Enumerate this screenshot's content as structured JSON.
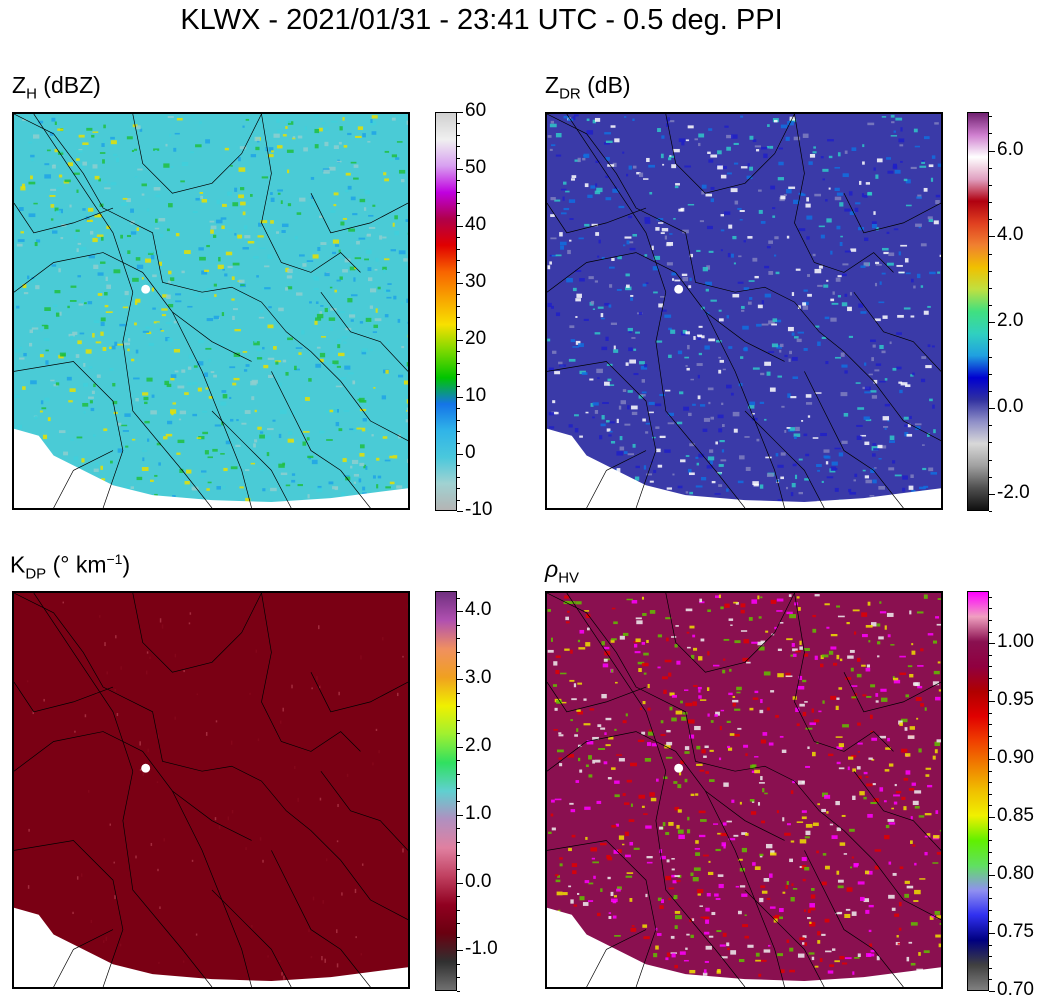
{
  "figure": {
    "title": "KLWX - 2021/01/31 - 23:41 UTC - 0.5 deg. PPI"
  },
  "panels": [
    {
      "id": "zh",
      "title": "Z",
      "title_sub": "H",
      "title_rest": " (dBZ)",
      "cmap": [
        "#b4b4b4",
        "#a0d2d2",
        "#4ac8dc",
        "#30b4e8",
        "#1474e8",
        "#00c400",
        "#7ad800",
        "#f8e000",
        "#f8a400",
        "#f86400",
        "#e00000",
        "#b0004a",
        "#c000e0",
        "#d8a0f0",
        "#f0f0f0",
        "#d0d0d0"
      ],
      "field_colors": [
        "#4acbd6",
        "#3fd0dc",
        "#8ecfcf",
        "#1fa3e6",
        "#20c040",
        "#e8e000"
      ],
      "colorbar": {
        "min": -10,
        "max": 60,
        "ticks": [
          "60",
          "50",
          "40",
          "30",
          "20",
          "10",
          "0",
          "-10"
        ],
        "tick_values": [
          60,
          50,
          40,
          30,
          20,
          10,
          0,
          -10
        ]
      }
    },
    {
      "id": "zdr",
      "title": "Z",
      "title_sub": "DR",
      "title_rest": " (dB)",
      "cmap": [
        "#101010",
        "#505050",
        "#a0a0a0",
        "#d8d8d8",
        "#9090c8",
        "#3030a0",
        "#0000d0",
        "#20a0e0",
        "#30d0c0",
        "#40e080",
        "#c0e040",
        "#f0c000",
        "#f08030",
        "#e04020",
        "#b00010",
        "#e0a0c0",
        "#ffffff",
        "#d080d0",
        "#702070"
      ],
      "field_colors": [
        "#3a3aa8",
        "#2020c8",
        "#ffffff",
        "#8080c0",
        "#1070e0",
        "#30c8c8"
      ],
      "colorbar": {
        "min": -2.4,
        "max": 6.9,
        "ticks": [
          "6.0",
          "4.0",
          "2.0",
          "0.0",
          "-2.0"
        ],
        "tick_values": [
          6,
          4,
          2,
          0,
          -2
        ]
      }
    },
    {
      "id": "kdp",
      "title": "K",
      "title_sub": "DP",
      "title_rest": " (° km",
      "title_sup": "−1",
      "title_end": ")",
      "cmap": [
        "#707070",
        "#303030",
        "#6a0010",
        "#900020",
        "#c04060",
        "#e080a0",
        "#b090c0",
        "#60d0d0",
        "#30e060",
        "#a0f030",
        "#f0f000",
        "#f0a020",
        "#f09060",
        "#b050b0",
        "#703080"
      ],
      "field_colors": [
        "#7a0014",
        "#8a0a1e",
        "#c04a5a"
      ],
      "colorbar": {
        "min": -1.6,
        "max": 4.3,
        "ticks": [
          "4.0",
          "3.0",
          "2.0",
          "1.0",
          "0.0",
          "-1.0"
        ],
        "tick_values": [
          4,
          3,
          2,
          1,
          0,
          -1
        ]
      }
    },
    {
      "id": "rhohv",
      "title": "ρ",
      "title_sub": "HV",
      "title_rest": "",
      "cmap": [
        "#808080",
        "#404040",
        "#000080",
        "#3030f0",
        "#9090f0",
        "#60e060",
        "#60f000",
        "#f0f000",
        "#f0c000",
        "#f08000",
        "#f04000",
        "#e00000",
        "#b00000",
        "#900040",
        "#8a1050",
        "#f0a0c0",
        "#ff00ff"
      ],
      "field_colors": [
        "#8a1050",
        "#ff00ff",
        "#f0f0f0",
        "#e00000",
        "#f0e000",
        "#60c000"
      ],
      "colorbar": {
        "min": 0.7,
        "max": 1.045,
        "ticks": [
          "1.00",
          "0.95",
          "0.90",
          "0.85",
          "0.80",
          "0.75",
          "0.70"
        ],
        "tick_values": [
          1.0,
          0.95,
          0.9,
          0.85,
          0.8,
          0.75,
          0.7
        ]
      }
    }
  ]
}
